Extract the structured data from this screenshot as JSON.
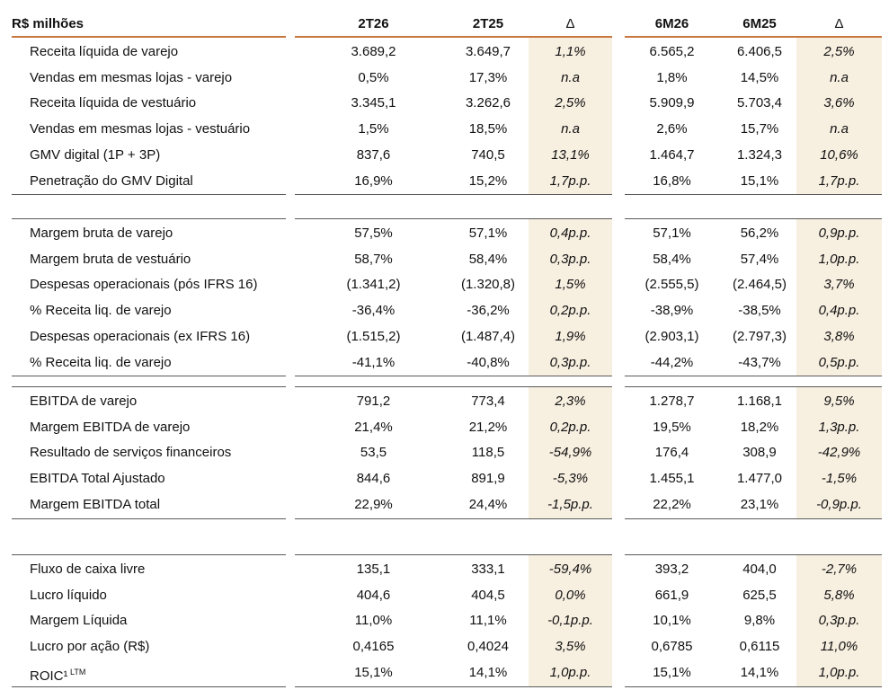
{
  "header": {
    "title": "R$ milhões",
    "col_2t26": "2T26",
    "col_2t25": "2T25",
    "col_delta_q": "Δ",
    "col_6m26": "6M26",
    "col_6m25": "6M25",
    "col_delta_s": "Δ"
  },
  "groups": [
    {
      "rows": [
        {
          "label": "Receita líquida de varejo",
          "q26": "3.689,2",
          "q25": "3.649,7",
          "dq": "1,1%",
          "s26": "6.565,2",
          "s25": "6.406,5",
          "ds": "2,5%"
        },
        {
          "label": "Vendas em mesmas lojas - varejo",
          "q26": "0,5%",
          "q25": "17,3%",
          "dq": "n.a",
          "s26": "1,8%",
          "s25": "14,5%",
          "ds": "n.a"
        },
        {
          "label": "Receita líquida de vestuário",
          "q26": "3.345,1",
          "q25": "3.262,6",
          "dq": "2,5%",
          "s26": "5.909,9",
          "s25": "5.703,4",
          "ds": "3,6%"
        },
        {
          "label": "Vendas em mesmas lojas - vestuário",
          "q26": "1,5%",
          "q25": "18,5%",
          "dq": "n.a",
          "s26": "2,6%",
          "s25": "15,7%",
          "ds": "n.a"
        },
        {
          "label": "GMV digital (1P + 3P)",
          "q26": "837,6",
          "q25": "740,5",
          "dq": "13,1%",
          "s26": "1.464,7",
          "s25": "1.324,3",
          "ds": "10,6%"
        },
        {
          "label": "Penetração do GMV Digital",
          "q26": "16,9%",
          "q25": "15,2%",
          "dq": "1,7p.p.",
          "s26": "16,8%",
          "s25": "15,1%",
          "ds": "1,7p.p."
        }
      ]
    },
    {
      "rows": [
        {
          "label": "Margem bruta de varejo",
          "q26": "57,5%",
          "q25": "57,1%",
          "dq": "0,4p.p.",
          "s26": "57,1%",
          "s25": "56,2%",
          "ds": "0,9p.p."
        },
        {
          "label": "Margem bruta de vestuário",
          "q26": "58,7%",
          "q25": "58,4%",
          "dq": "0,3p.p.",
          "s26": "58,4%",
          "s25": "57,4%",
          "ds": "1,0p.p."
        },
        {
          "label": "Despesas operacionais (pós IFRS 16)",
          "q26": "(1.341,2)",
          "q25": "(1.320,8)",
          "dq": "1,5%",
          "s26": "(2.555,5)",
          "s25": "(2.464,5)",
          "ds": "3,7%"
        },
        {
          "label": "% Receita liq. de varejo",
          "q26": "-36,4%",
          "q25": "-36,2%",
          "dq": "0,2p.p.",
          "s26": "-38,9%",
          "s25": "-38,5%",
          "ds": "0,4p.p."
        },
        {
          "label": "Despesas operacionais (ex IFRS 16)",
          "q26": "(1.515,2)",
          "q25": "(1.487,4)",
          "dq": "1,9%",
          "s26": "(2.903,1)",
          "s25": "(2.797,3)",
          "ds": "3,8%"
        },
        {
          "label": "% Receita liq. de varejo",
          "q26": "-41,1%",
          "q25": "-40,8%",
          "dq": "0,3p.p.",
          "s26": "-44,2%",
          "s25": "-43,7%",
          "ds": "0,5p.p."
        }
      ]
    },
    {
      "rows": [
        {
          "label": "EBITDA de varejo",
          "q26": "791,2",
          "q25": "773,4",
          "dq": "2,3%",
          "s26": "1.278,7",
          "s25": "1.168,1",
          "ds": "9,5%"
        },
        {
          "label": "Margem EBITDA de varejo",
          "q26": "21,4%",
          "q25": "21,2%",
          "dq": "0,2p.p.",
          "s26": "19,5%",
          "s25": "18,2%",
          "ds": "1,3p.p."
        },
        {
          "label": "Resultado de serviços financeiros",
          "q26": "53,5",
          "q25": "118,5",
          "dq": "-54,9%",
          "s26": "176,4",
          "s25": "308,9",
          "ds": "-42,9%"
        },
        {
          "label": "EBITDA Total Ajustado",
          "q26": "844,6",
          "q25": "891,9",
          "dq": "-5,3%",
          "s26": "1.455,1",
          "s25": "1.477,0",
          "ds": "-1,5%"
        },
        {
          "label": "Margem EBITDA total",
          "q26": "22,9%",
          "q25": "24,4%",
          "dq": "-1,5p.p.",
          "s26": "22,2%",
          "s25": "23,1%",
          "ds": "-0,9p.p."
        }
      ]
    },
    {
      "rows": [
        {
          "label": "Fluxo de caixa livre",
          "q26": "135,1",
          "q25": "333,1",
          "dq": "-59,4%",
          "s26": "393,2",
          "s25": "404,0",
          "ds": "-2,7%"
        },
        {
          "label": "Lucro líquido",
          "q26": "404,6",
          "q25": "404,5",
          "dq": "0,0%",
          "s26": "661,9",
          "s25": "625,5",
          "ds": "5,8%"
        },
        {
          "label": "Margem Líquida",
          "q26": "11,0%",
          "q25": "11,1%",
          "dq": "-0,1p.p.",
          "s26": "10,1%",
          "s25": "9,8%",
          "ds": "0,3p.p."
        },
        {
          "label": "Lucro por ação (R$)",
          "q26": "0,4165",
          "q25": "0,4024",
          "dq": "3,5%",
          "s26": "0,6785",
          "s25": "0,6115",
          "ds": "11,0%"
        },
        {
          "label": "ROIC¹",
          "label_sup": "LTM",
          "q26": "15,1%",
          "q25": "14,1%",
          "dq": "1,0p.p.",
          "s26": "15,1%",
          "s25": "14,1%",
          "ds": "1,0p.p."
        }
      ]
    }
  ]
}
